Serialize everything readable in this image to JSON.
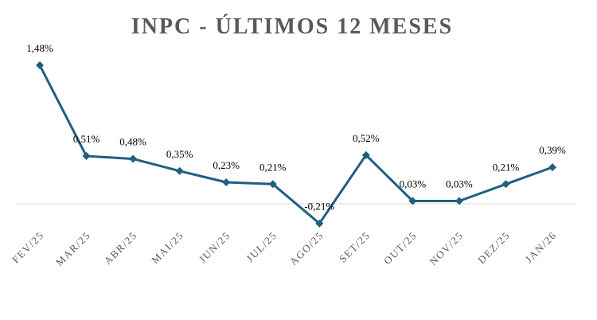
{
  "chart_data": {
    "type": "line",
    "title": "INPC - ÚLTIMOS 12 MESES",
    "categories": [
      "FEV/25",
      "MAR/25",
      "ABR/25",
      "MAI/25",
      "JUN/25",
      "JUL/25",
      "AGO/25",
      "SET/25",
      "OUT/25",
      "NOV/25",
      "DEZ/25",
      "JAN/26"
    ],
    "values": [
      1.48,
      0.51,
      0.48,
      0.35,
      0.23,
      0.21,
      -0.21,
      0.52,
      0.03,
      0.03,
      0.21,
      0.39
    ],
    "data_labels": [
      "1,48%",
      "0,51%",
      "0,48%",
      "0,35%",
      "0,23%",
      "0,21%",
      "-0,21%",
      "0,52%",
      "0,03%",
      "0,03%",
      "0,21%",
      "0,39%"
    ],
    "xlabel": "",
    "ylabel": "",
    "grid": false,
    "zero_line": true,
    "marker": "diamond",
    "colors": {
      "line": "#1f5f80",
      "title": "#595959",
      "zero_line": "#d9d9d9"
    }
  }
}
